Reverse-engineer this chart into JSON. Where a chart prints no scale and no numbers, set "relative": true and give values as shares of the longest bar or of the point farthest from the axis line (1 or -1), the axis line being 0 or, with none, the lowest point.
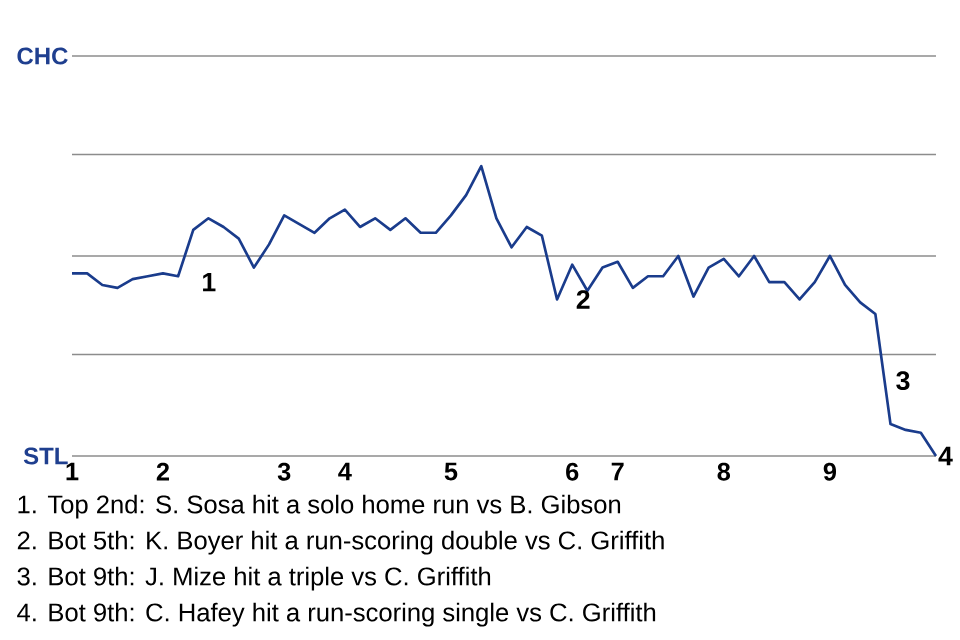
{
  "chart_data": {
    "type": "line",
    "relative": true,
    "categories": [
      "1",
      null,
      null,
      null,
      null,
      null,
      "2",
      null,
      null,
      null,
      null,
      null,
      null,
      null,
      "3",
      null,
      null,
      null,
      "4",
      null,
      null,
      null,
      null,
      null,
      null,
      "5",
      null,
      null,
      null,
      null,
      null,
      null,
      null,
      "6",
      null,
      null,
      "7",
      null,
      null,
      null,
      null,
      null,
      null,
      "8",
      null,
      null,
      null,
      null,
      null,
      null,
      "9",
      null,
      null,
      null,
      null,
      null,
      null,
      null
    ],
    "series": [
      {
        "color": "#1a3c8c",
        "values": [
          0.63,
          0.63,
          0.59,
          0.58,
          0.61,
          0.62,
          0.63,
          0.62,
          0.78,
          0.82,
          0.79,
          0.75,
          0.65,
          0.73,
          0.83,
          0.8,
          0.77,
          0.82,
          0.85,
          0.79,
          0.82,
          0.78,
          0.82,
          0.77,
          0.77,
          0.83,
          0.9,
          1,
          0.82,
          0.72,
          0.79,
          0.76,
          0.54,
          0.66,
          0.57,
          0.65,
          0.67,
          0.58,
          0.62,
          0.62,
          0.69,
          0.55,
          0.65,
          0.68,
          0.62,
          0.69,
          0.6,
          0.6,
          0.54,
          0.6,
          0.69,
          0.59,
          0.53,
          0.49,
          0.11,
          0.09,
          0.08,
          0
        ]
      }
    ],
    "ref_lines": [
      {
        "axis": "y",
        "value": 0.35,
        "color": "#8c8c8c"
      },
      {
        "axis": "y",
        "value": 0.69,
        "color": "#8c8c8c"
      },
      {
        "axis": "y",
        "value": 1.04,
        "color": "#8c8c8c"
      },
      {
        "axis": "y",
        "value": 1.38,
        "color": "#8c8c8c"
      }
    ],
    "annotations": [
      "1",
      "2",
      "3",
      "4",
      "CHC",
      "STL",
      "1. Top 2nd: S. Sosa hit a solo home run vs B. Gibson",
      "2. Bot 5th: K. Boyer hit a run-scoring double vs C. Griffith",
      "3. Bot 9th: J. Mize hit a triple vs C. Griffith",
      "4. Bot 9th: C. Hafey hit a run-scoring single vs C. Griffith"
    ]
  }
}
